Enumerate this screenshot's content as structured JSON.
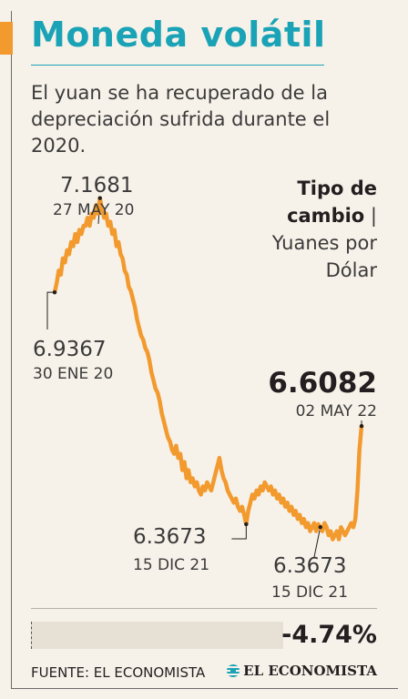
{
  "header": {
    "title": "Moneda volátil",
    "subtitle": "El yuan se ha recuperado de la depreciación sufrida durante el 2020."
  },
  "colors": {
    "accent": "#f29a2e",
    "title": "#1aa3b6",
    "line": "#f29a2e"
  },
  "chart_data": {
    "type": "line",
    "title": "Moneda volátil",
    "subtitle": "El yuan se ha recuperado de la depreciación sufrida durante el 2020.",
    "unit_label_bold": "Tipo de cambio",
    "unit_label_sep": "|",
    "unit_label_rest": "Yuanes por Dólar",
    "start_date": "30 ENE 20",
    "end_date": "02 MAY 22",
    "ylim": [
      6.3,
      7.25
    ],
    "grid": false,
    "legend": "none",
    "series": [
      {
        "values": [
          6.9367,
          6.96,
          6.99,
          6.98,
          7.02,
          7.01,
          7.04,
          7.03,
          7.06,
          7.05,
          7.08,
          7.06,
          7.09,
          7.08,
          7.1,
          7.1,
          7.12,
          7.1,
          7.13,
          7.12,
          7.15,
          7.13,
          7.1681,
          7.14,
          7.12,
          7.13,
          7.1,
          7.11,
          7.08,
          7.09,
          7.05,
          7.06,
          7.03,
          7.02,
          6.99,
          6.98,
          6.95,
          6.94,
          6.92,
          6.9,
          6.87,
          6.85,
          6.83,
          6.82,
          6.8,
          6.79,
          6.77,
          6.74,
          6.72,
          6.7,
          6.69,
          6.67,
          6.64,
          6.62,
          6.6,
          6.58,
          6.57,
          6.55,
          6.54,
          6.56,
          6.53,
          6.54,
          6.5,
          6.52,
          6.48,
          6.5,
          6.47,
          6.48,
          6.46,
          6.47,
          6.45,
          6.44,
          6.46,
          6.45,
          6.47,
          6.46,
          6.45,
          6.47,
          6.49,
          6.51,
          6.53,
          6.5,
          6.48,
          6.47,
          6.45,
          6.44,
          6.43,
          6.42,
          6.43,
          6.41,
          6.4,
          6.41,
          6.39,
          6.3673,
          6.4,
          6.42,
          6.44,
          6.43,
          6.45,
          6.44,
          6.46,
          6.45,
          6.47,
          6.46,
          6.45,
          6.46,
          6.44,
          6.45,
          6.43,
          6.44,
          6.42,
          6.43,
          6.41,
          6.42,
          6.4,
          6.41,
          6.39,
          6.4,
          6.38,
          6.39,
          6.37,
          6.38,
          6.36,
          6.37,
          6.35,
          6.36,
          6.37,
          6.35,
          6.3673,
          6.36,
          6.35,
          6.37,
          6.36,
          6.34,
          6.35,
          6.33,
          6.34,
          6.35,
          6.33,
          6.36,
          6.35,
          6.34,
          6.35,
          6.36,
          6.37,
          6.36,
          6.38,
          6.45,
          6.55,
          6.6082
        ]
      }
    ],
    "annotations": [
      {
        "name": "max",
        "value": "7.1681",
        "date": "27 MAY 20"
      },
      {
        "name": "start",
        "value": "6.9367",
        "date": "30 ENE 20"
      },
      {
        "name": "low-1",
        "value": "6.3673",
        "date": "15 DIC 21"
      },
      {
        "name": "low-2",
        "value": "6.3673",
        "date": "15 DIC 21"
      },
      {
        "name": "last",
        "value": "6.6082",
        "date": "02 MAY 22"
      }
    ],
    "change": "-4.74%"
  },
  "footer": {
    "source": "FUENTE: EL ECONOMISTA",
    "logo_text": "EL ECONOMISTA"
  }
}
